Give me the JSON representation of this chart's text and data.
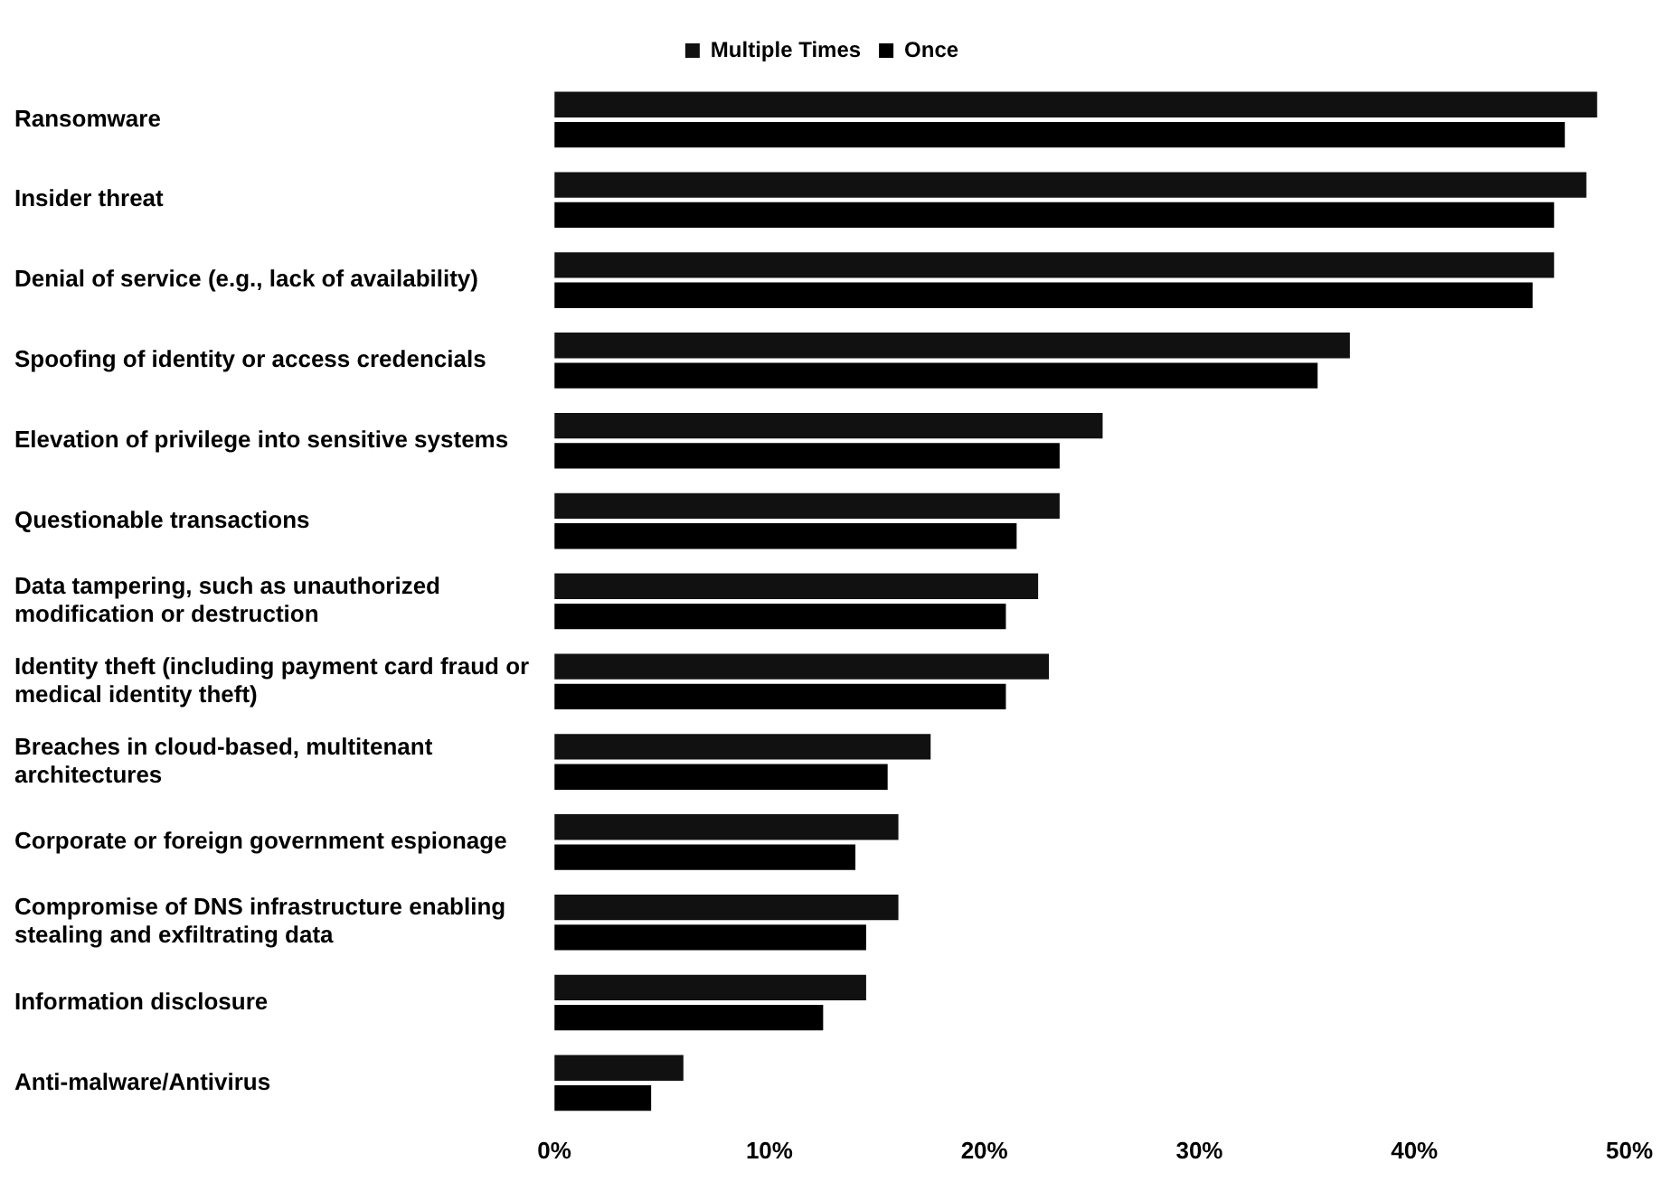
{
  "chart_data": {
    "type": "bar",
    "orientation": "horizontal",
    "legend": "top",
    "grid": false,
    "categories": [
      "Ransomware",
      "Insider threat",
      "Denial of service (e.g., lack of availability)",
      "Spoofing of identity or access credencials",
      "Elevation of privilege into sensitive systems",
      "Questionable transactions",
      "Data tampering, such as unauthorized modification or destruction",
      "Identity theft (including payment card fraud or medical identity theft)",
      "Breaches in cloud-based, multitenant architectures",
      "Corporate or foreign government espionage",
      "Compromise of DNS infrastructure enabling stealing and exfiltrating data",
      "Information disclosure",
      "Anti-malware/Antivirus"
    ],
    "series": [
      {
        "name": "Multiple Times",
        "color": "#111111",
        "values": [
          48.5,
          48,
          46.5,
          37,
          25.5,
          23.5,
          22.5,
          23,
          17.5,
          16,
          16,
          14.5,
          6
        ]
      },
      {
        "name": "Once",
        "color": "#000000",
        "values": [
          47,
          46.5,
          45.5,
          35.5,
          23.5,
          21.5,
          21,
          21,
          15.5,
          14,
          14.5,
          12.5,
          4.5
        ]
      }
    ],
    "xlim": [
      0,
      50
    ],
    "xticks": [
      {
        "value": 0,
        "label": "0%"
      },
      {
        "value": 10,
        "label": "10%"
      },
      {
        "value": 20,
        "label": "20%"
      },
      {
        "value": 30,
        "label": "30%"
      },
      {
        "value": 40,
        "label": "40%"
      },
      {
        "value": 50,
        "label": "50%"
      }
    ]
  }
}
